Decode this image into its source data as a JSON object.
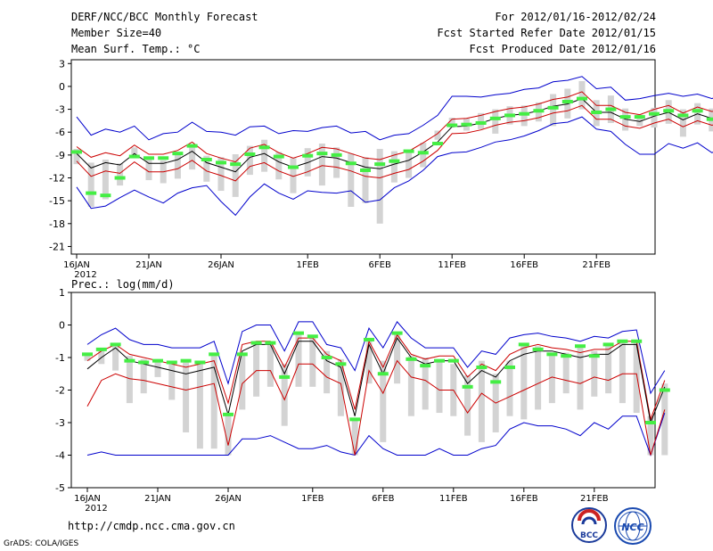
{
  "header": {
    "title": "DERF/NCC/BCC Monthly Forecast",
    "member_size": "Member Size=40",
    "top_variable": "Mean Surf. Temp.: °C",
    "period": "For 2012/01/16-2012/02/24",
    "start_date": "Fcst Started Refer Date 2012/01/15",
    "produced_date": "Fcst Produced Date 2012/01/16"
  },
  "footer": {
    "url": "http://cmdp.ncc.cma.gov.cn",
    "grads": "GrADS: COLA/IGES",
    "logo_bcc": "BCC",
    "logo_ncc": "NCC"
  },
  "colors": {
    "mean": "#000000",
    "spread": "#cc0000",
    "envelope": "#0000cc",
    "box": "#d3d3d3",
    "marker": "#44ee44"
  },
  "chart_data": [
    {
      "type": "line",
      "title": "Mean Surf. Temp.: °C",
      "xlabel": "",
      "ylabel": "",
      "ylim": [
        -22,
        3.5
      ],
      "yticks": [
        3,
        0,
        -3,
        -6,
        -9,
        -12,
        -15,
        -18,
        -21
      ],
      "x_tick_labels": [
        "16JAN",
        "21JAN",
        "26JAN",
        "1FEB",
        "6FEB",
        "11FEB",
        "16FEB",
        "21FEB"
      ],
      "x_tick_positions": [
        0,
        5,
        10,
        16,
        21,
        26,
        31,
        36
      ],
      "year_label": "2012",
      "series": [
        {
          "name": "ensemble mean",
          "values": [
            -8.8,
            -10.7,
            -10.0,
            -10.3,
            -8.8,
            -10.1,
            -10.1,
            -9.6,
            -8.5,
            -10.0,
            -10.6,
            -11.2,
            -9.3,
            -8.8,
            -9.9,
            -10.6,
            -10.0,
            -9.2,
            -9.4,
            -10.0,
            -10.6,
            -10.8,
            -10.2,
            -9.7,
            -8.6,
            -7.3,
            -5.3,
            -5.2,
            -4.8,
            -4.2,
            -3.8,
            -3.6,
            -3.2,
            -2.6,
            -2.3,
            -1.6,
            -3.4,
            -3.4,
            -4.3,
            -4.6,
            -3.9,
            -3.4,
            -4.4,
            -3.6,
            -4.2,
            -3.6
          ]
        },
        {
          "name": "upper spread",
          "values": [
            -7.9,
            -9.3,
            -8.7,
            -9.1,
            -7.7,
            -8.9,
            -8.9,
            -8.4,
            -7.3,
            -8.8,
            -9.4,
            -9.9,
            -8.1,
            -7.6,
            -8.7,
            -9.4,
            -8.8,
            -8.0,
            -8.2,
            -8.8,
            -9.4,
            -9.6,
            -9.0,
            -8.5,
            -7.4,
            -6.2,
            -4.3,
            -4.2,
            -3.8,
            -3.3,
            -2.9,
            -2.7,
            -2.3,
            -1.7,
            -1.4,
            -0.7,
            -2.5,
            -2.5,
            -3.4,
            -3.7,
            -3.0,
            -2.5,
            -3.5,
            -2.7,
            -3.3,
            -2.7
          ]
        },
        {
          "name": "lower spread",
          "values": [
            -9.8,
            -11.8,
            -11.1,
            -11.4,
            -9.9,
            -11.2,
            -11.2,
            -10.8,
            -9.7,
            -11.1,
            -11.7,
            -12.4,
            -10.5,
            -10.0,
            -11.1,
            -11.8,
            -11.2,
            -10.4,
            -10.6,
            -11.1,
            -11.8,
            -12.0,
            -11.4,
            -10.9,
            -9.8,
            -8.4,
            -6.2,
            -6.1,
            -5.7,
            -5.1,
            -4.7,
            -4.5,
            -4.1,
            -3.5,
            -3.2,
            -2.5,
            -4.3,
            -4.3,
            -5.2,
            -5.5,
            -4.8,
            -4.3,
            -5.3,
            -4.5,
            -5.1,
            -4.5
          ]
        },
        {
          "name": "ensemble max",
          "values": [
            -4.0,
            -6.4,
            -5.6,
            -6.0,
            -5.2,
            -7.0,
            -6.2,
            -6.0,
            -4.7,
            -5.9,
            -6.0,
            -6.4,
            -5.3,
            -5.2,
            -6.2,
            -5.8,
            -5.9,
            -5.4,
            -5.2,
            -6.1,
            -5.9,
            -7.0,
            -6.4,
            -6.2,
            -5.1,
            -3.8,
            -1.3,
            -1.3,
            -1.4,
            -1.1,
            -0.9,
            -0.4,
            -0.2,
            0.6,
            0.8,
            1.3,
            -0.3,
            -0.1,
            -1.8,
            -1.6,
            -1.2,
            -0.9,
            -1.3,
            -1.0,
            -1.6,
            -0.8
          ]
        },
        {
          "name": "ensemble min",
          "values": [
            -13.2,
            -16.0,
            -15.7,
            -14.6,
            -13.6,
            -14.5,
            -15.3,
            -14.0,
            -13.3,
            -13.0,
            -15.1,
            -16.9,
            -14.5,
            -12.8,
            -14.0,
            -14.8,
            -13.7,
            -13.9,
            -14.0,
            -13.7,
            -15.2,
            -14.9,
            -13.3,
            -12.4,
            -11.0,
            -9.2,
            -8.7,
            -8.6,
            -8.0,
            -7.3,
            -7.0,
            -6.5,
            -5.8,
            -4.9,
            -4.7,
            -4.0,
            -5.6,
            -5.9,
            -7.6,
            -8.9,
            -8.9,
            -7.5,
            -8.1,
            -7.4,
            -8.7,
            -7.7
          ]
        },
        {
          "name": "box top",
          "values": [
            -8.2,
            -10.0,
            -9.6,
            -10.1,
            -8.0,
            -9.4,
            -9.7,
            -8.7,
            -7.6,
            -9.1,
            -9.3,
            -8.9,
            -7.8,
            -7.0,
            -8.6,
            -9.4,
            -8.1,
            -7.5,
            -8.0,
            -8.8,
            -9.3,
            -8.2,
            -8.5,
            -8.4,
            -7.4,
            -5.8,
            -4.1,
            -4.2,
            -3.5,
            -3.0,
            -2.6,
            -2.5,
            -2.1,
            -1.0,
            -0.3,
            0.7,
            -1.8,
            -1.2,
            -2.9,
            -3.7,
            -2.8,
            -1.8,
            -3.0,
            -2.2,
            -2.9,
            -2.6
          ]
        },
        {
          "name": "box bottom",
          "values": [
            -10.2,
            -15.8,
            -14.8,
            -13.0,
            -9.0,
            -12.3,
            -12.7,
            -12.1,
            -10.9,
            -12.5,
            -13.7,
            -14.5,
            -11.6,
            -11.2,
            -12.2,
            -14.0,
            -11.8,
            -13.0,
            -12.0,
            -15.8,
            -15.3,
            -18.0,
            -12.6,
            -12.0,
            -10.6,
            -7.0,
            -5.4,
            -5.8,
            -5.6,
            -6.2,
            -5.0,
            -5.2,
            -4.6,
            -5.2,
            -4.2,
            -3.0,
            -5.2,
            -4.8,
            -5.8,
            -5.2,
            -5.4,
            -4.9,
            -6.6,
            -5.0,
            -5.9,
            -5.8
          ]
        },
        {
          "name": "observed marker",
          "values": [
            -8.6,
            -14.0,
            -14.3,
            -12.0,
            -9.2,
            -9.4,
            -9.4,
            -8.8,
            -7.8,
            -9.6,
            -10.0,
            -10.2,
            -8.9,
            -8.0,
            -9.2,
            -10.6,
            -9.1,
            -8.8,
            -9.0,
            -10.1,
            -11.0,
            -10.2,
            -9.8,
            -8.5,
            -8.7,
            -7.5,
            -5.1,
            -5.0,
            -4.8,
            -4.2,
            -3.8,
            -3.6,
            -3.2,
            -2.8,
            -2.0,
            -1.6,
            -3.4,
            -3.0,
            -4.0,
            -4.0,
            -3.6,
            -3.2,
            -3.8,
            -3.2,
            -4.3,
            -3.2
          ]
        }
      ]
    },
    {
      "type": "line",
      "title": "Prec.: log(mm/d)",
      "xlabel": "",
      "ylabel": "",
      "ylim": [
        -5,
        1
      ],
      "yticks": [
        1,
        0,
        -1,
        -2,
        -3,
        -4,
        -5
      ],
      "x_tick_labels": [
        "16JAN",
        "21JAN",
        "26JAN",
        "1FEB",
        "6FEB",
        "11FEB",
        "16FEB",
        "21FEB"
      ],
      "x_tick_positions": [
        0,
        5,
        10,
        16,
        21,
        26,
        31,
        36
      ],
      "year_label": "2012",
      "series": [
        {
          "name": "ensemble mean",
          "values": [
            -1.35,
            -1.0,
            -0.7,
            -1.1,
            -1.2,
            -1.3,
            -1.4,
            -1.5,
            -1.4,
            -1.3,
            -2.75,
            -0.8,
            -0.6,
            -0.6,
            -1.5,
            -0.5,
            -0.5,
            -1.1,
            -1.3,
            -2.8,
            -0.6,
            -1.5,
            -0.4,
            -1.0,
            -1.2,
            -1.1,
            -1.1,
            -1.8,
            -1.4,
            -1.6,
            -1.1,
            -0.9,
            -0.8,
            -0.8,
            -0.9,
            -1.0,
            -0.9,
            -0.9,
            -0.6,
            -0.6,
            -3.0,
            -1.9
          ]
        },
        {
          "name": "upper spread",
          "values": [
            -1.1,
            -0.8,
            -0.6,
            -0.9,
            -1.0,
            -1.1,
            -1.2,
            -1.3,
            -1.2,
            -1.1,
            -2.4,
            -0.6,
            -0.5,
            -0.5,
            -1.3,
            -0.4,
            -0.4,
            -0.9,
            -1.1,
            -2.6,
            -0.5,
            -1.3,
            -0.3,
            -0.9,
            -1.05,
            -0.95,
            -0.95,
            -1.6,
            -1.2,
            -1.4,
            -0.9,
            -0.7,
            -0.6,
            -0.7,
            -0.75,
            -0.85,
            -0.75,
            -0.75,
            -0.5,
            -0.5,
            -2.9,
            -1.7
          ]
        },
        {
          "name": "lower spread",
          "values": [
            -2.5,
            -1.7,
            -1.5,
            -1.65,
            -1.7,
            -1.8,
            -1.9,
            -2.0,
            -1.9,
            -1.8,
            -3.7,
            -1.8,
            -1.4,
            -1.4,
            -2.3,
            -1.2,
            -1.2,
            -1.6,
            -1.8,
            -4.0,
            -1.4,
            -2.1,
            -1.1,
            -1.6,
            -1.7,
            -2.0,
            -2.0,
            -2.7,
            -2.1,
            -2.4,
            -2.2,
            -2.0,
            -1.8,
            -1.6,
            -1.7,
            -1.8,
            -1.6,
            -1.7,
            -1.5,
            -1.5,
            -4.0,
            -2.6
          ]
        },
        {
          "name": "ensemble max",
          "values": [
            -0.6,
            -0.3,
            -0.1,
            -0.45,
            -0.6,
            -0.6,
            -0.7,
            -0.7,
            -0.7,
            -0.5,
            -1.8,
            -0.2,
            0.0,
            0.0,
            -0.8,
            0.1,
            0.1,
            -0.6,
            -0.7,
            -1.4,
            -0.1,
            -0.7,
            0.1,
            -0.4,
            -0.7,
            -0.7,
            -0.7,
            -1.3,
            -0.8,
            -0.9,
            -0.4,
            -0.3,
            -0.25,
            -0.35,
            -0.4,
            -0.5,
            -0.35,
            -0.4,
            -0.2,
            -0.15,
            -2.1,
            -1.4
          ]
        },
        {
          "name": "ensemble min",
          "values": [
            -4.0,
            -3.9,
            -4.0,
            -4.0,
            -4.0,
            -4.0,
            -4.0,
            -4.0,
            -4.0,
            -4.0,
            -4.0,
            -3.5,
            -3.5,
            -3.4,
            -3.6,
            -3.8,
            -3.8,
            -3.7,
            -3.9,
            -4.0,
            -3.4,
            -3.8,
            -4.0,
            -4.0,
            -4.0,
            -3.8,
            -4.0,
            -4.0,
            -3.8,
            -3.7,
            -3.2,
            -3.0,
            -3.1,
            -3.1,
            -3.2,
            -3.4,
            -3.0,
            -3.2,
            -2.8,
            -2.8,
            -4.0,
            -2.7
          ]
        },
        {
          "name": "box top",
          "values": [
            -0.9,
            -0.7,
            -0.55,
            -0.95,
            -1.05,
            -1.05,
            -1.2,
            -1.1,
            -1.15,
            -0.9,
            -2.75,
            -0.85,
            -0.5,
            -0.55,
            -1.2,
            -0.3,
            -0.4,
            -0.8,
            -1.05,
            -2.85,
            -0.45,
            -1.1,
            -0.2,
            -0.95,
            -1.0,
            -1.15,
            -1.2,
            -1.55,
            -1.1,
            -1.5,
            -1.1,
            -0.65,
            -0.65,
            -0.95,
            -0.85,
            -0.65,
            -0.8,
            -0.6,
            -0.55,
            -0.55,
            -2.8,
            -1.8
          ]
        },
        {
          "name": "box bottom",
          "values": [
            -1.1,
            -1.2,
            -1.4,
            -2.4,
            -2.1,
            -1.6,
            -2.3,
            -3.3,
            -3.8,
            -3.8,
            -4.0,
            -2.6,
            -2.2,
            -1.9,
            -3.1,
            -1.9,
            -1.9,
            -2.1,
            -2.8,
            -4.0,
            -1.8,
            -3.6,
            -1.8,
            -2.8,
            -2.6,
            -2.7,
            -2.8,
            -3.4,
            -3.6,
            -3.3,
            -2.8,
            -2.9,
            -2.6,
            -2.4,
            -2.1,
            -2.6,
            -2.2,
            -2.1,
            -2.4,
            -2.7,
            -4.0,
            -4.0
          ]
        },
        {
          "name": "observed marker",
          "values": [
            -0.9,
            -0.75,
            -0.6,
            -1.1,
            -1.15,
            -1.1,
            -1.15,
            -1.1,
            -1.15,
            -0.9,
            -2.75,
            -0.9,
            -0.55,
            -0.55,
            -1.6,
            -0.25,
            -0.35,
            -1.0,
            -1.2,
            -2.9,
            -0.45,
            -1.5,
            -0.25,
            -1.05,
            -1.25,
            -1.1,
            -1.1,
            -1.9,
            -1.3,
            -1.75,
            -1.3,
            -0.6,
            -0.75,
            -0.9,
            -0.95,
            -0.65,
            -0.95,
            -0.6,
            -0.5,
            -0.5,
            -3.0,
            -2.0
          ]
        }
      ]
    }
  ]
}
